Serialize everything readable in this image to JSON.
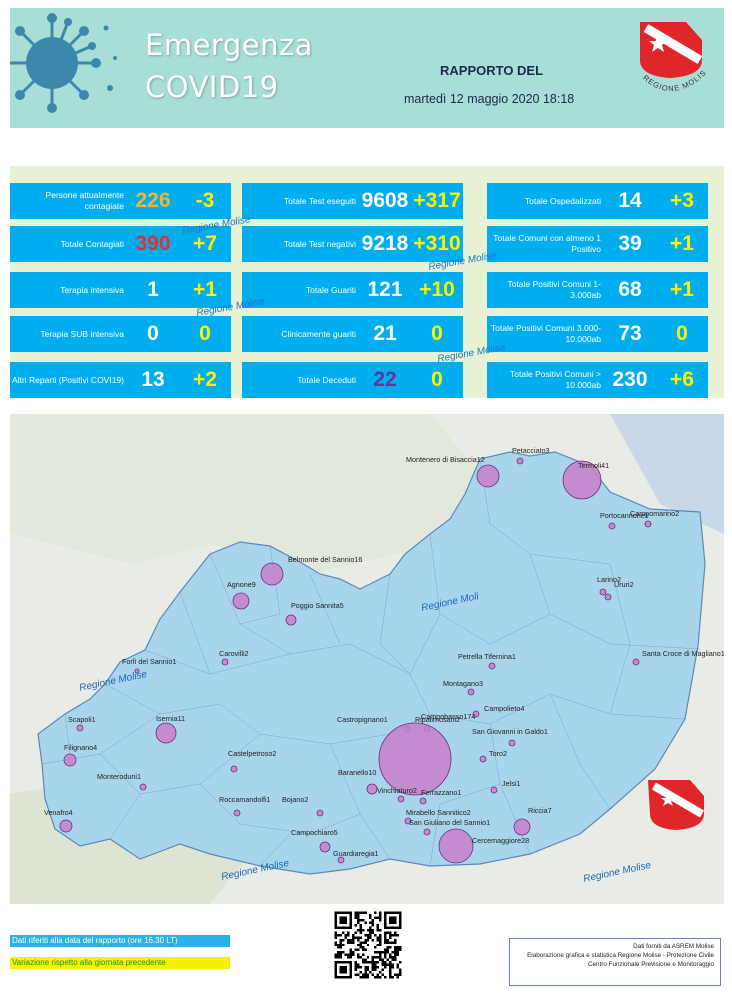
{
  "header": {
    "title_line1": "Emergenza",
    "title_line2": "COVID19",
    "report_label": "RAPPORTO DEL",
    "report_date": "martedì 12 maggio 2020 18:18",
    "logo_text": "REGIONE MOLISE"
  },
  "colors": {
    "header_bg": "#a7ded6",
    "card_bg": "#00aeef",
    "delta": "#fff200",
    "stats_bg": "#e6f2d3",
    "map_fill": "#a8d5ec",
    "circle": "#c77fc9"
  },
  "stats": {
    "col1": [
      {
        "label": "Persone attualmente contagiate",
        "value": "226",
        "delta": "-3"
      },
      {
        "label": "Totale Contagiati",
        "value": "390",
        "delta": "+7"
      },
      {
        "label": "Terapia  intensiva",
        "value": "1",
        "delta": "+1"
      },
      {
        "label": "Terapia SUB intensiva",
        "value": "0",
        "delta": "0"
      },
      {
        "label": "Altri Reparti (Positivi COVI19)",
        "value": "13",
        "delta": "+2"
      }
    ],
    "col2": [
      {
        "label": "Totale Test eseguiti",
        "value": "9608",
        "delta": "+317"
      },
      {
        "label": "Totale Test negativi",
        "value": "9218",
        "delta": "+310"
      },
      {
        "label": "Totale Guariti",
        "value": "121",
        "delta": "+10"
      },
      {
        "label": "Clinicamente guariti",
        "value": "21",
        "delta": "0"
      },
      {
        "label": "Totale Deceduti",
        "value": "22",
        "delta": "0"
      }
    ],
    "col3": [
      {
        "label": "Totale Ospedalizzati",
        "value": "14",
        "delta": "+3"
      },
      {
        "label": "Totale Comuni con almeno 1 Positivo",
        "value": "39",
        "delta": "+1"
      },
      {
        "label": "Totale Positivi Comuni 1-3.000ab",
        "value": "68",
        "delta": "+1"
      },
      {
        "label": "Totale Positivi Comuni 3.000-10.000ab",
        "value": "73",
        "delta": "0"
      },
      {
        "label": "Totale Positivi Comuni > 10.000ab",
        "value": "230",
        "delta": "+6"
      }
    ],
    "watermark": "Regione Molise"
  },
  "map": {
    "watermark": "Regione Molise",
    "watermark_short": "Regione Moli",
    "towns": [
      {
        "name": "Petacciato3"
      },
      {
        "name": "Montenero di Bisaccia12"
      },
      {
        "name": "Termoli41"
      },
      {
        "name": "Portocannone1"
      },
      {
        "name": "Campomarino2"
      },
      {
        "name": "Belmonte del Sannio16"
      },
      {
        "name": "Agnone9"
      },
      {
        "name": "Poggio Sannita5"
      },
      {
        "name": "Larino2"
      },
      {
        "name": "Ururi2"
      },
      {
        "name": "Santa Croce di Magliano1"
      },
      {
        "name": "Forlì del Sannio1"
      },
      {
        "name": "Carovilli2"
      },
      {
        "name": "Petrella Tifernina1"
      },
      {
        "name": "Montagano3"
      },
      {
        "name": "Scapoli1"
      },
      {
        "name": "Isernia11"
      },
      {
        "name": "Castropignano1"
      },
      {
        "name": "Ripalimosani2"
      },
      {
        "name": "Campolieto4"
      },
      {
        "name": "Filignano4"
      },
      {
        "name": "San Giovanni in Galdo1"
      },
      {
        "name": "Castelpetroso2"
      },
      {
        "name": "Campobasso174"
      },
      {
        "name": "Toro2"
      },
      {
        "name": "Monteroduni1"
      },
      {
        "name": "Baranello10"
      },
      {
        "name": "Jelsi1"
      },
      {
        "name": "Vinchiaturo2"
      },
      {
        "name": "Ferrazzano1"
      },
      {
        "name": "Roccamandolfi1"
      },
      {
        "name": "Bojano2"
      },
      {
        "name": "Mirabello Sannitico2"
      },
      {
        "name": "Riccia7"
      },
      {
        "name": "Venafro4"
      },
      {
        "name": "San Giuliano del Sannio1"
      },
      {
        "name": "Campochiaro5"
      },
      {
        "name": "Cercemaggiore28"
      },
      {
        "name": "Guardiaregia1"
      }
    ]
  },
  "footer": {
    "legend_date": "Dati riferiti alla data del rapporto  (ore 16.30 LT)",
    "legend_variation": "Variazione rispetto alla giornata precedente",
    "credits": [
      "Dati forniti da ASREM Molise",
      "Elaborazione grafica e statistica Regione Molise - Protezione Civile",
      "Centro Funzionale Previsione e Monitoraggio"
    ]
  }
}
